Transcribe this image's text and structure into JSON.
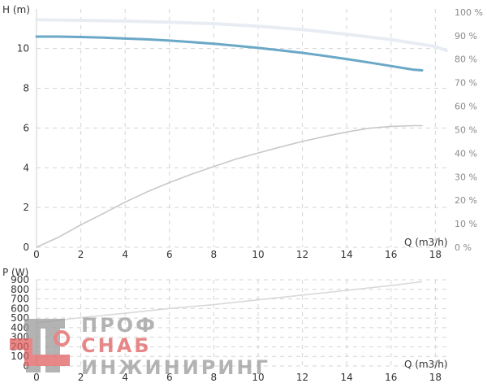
{
  "chart_data": [
    {
      "type": "line",
      "ylabel": "H (m)",
      "xlabel": "Q (m3/h)",
      "xlim": [
        0,
        18.5
      ],
      "ylim": [
        0,
        11.5
      ],
      "x_ticks": [
        "0",
        "2",
        "4",
        "6",
        "8",
        "10",
        "12",
        "14",
        "16",
        "18"
      ],
      "y_ticks": [
        "0",
        "2",
        "4",
        "6",
        "8",
        "10"
      ],
      "y2_ticks": [
        "0 %",
        "10 %",
        "20 %",
        "30 %",
        "40 %",
        "50 %",
        "60 %",
        "70 %",
        "80 %",
        "90 %",
        "100 %"
      ],
      "y2lim": [
        0,
        101
      ],
      "grid": true,
      "colors": {
        "head": "#6aa8c7",
        "efficiency": "#c8c8c8",
        "light_head": "#e8edf3",
        "grid": "#d4d4d4"
      },
      "series": [
        {
          "id": "head",
          "x": [
            0,
            1,
            2,
            3,
            4,
            5,
            6,
            7,
            8,
            9,
            10,
            11,
            12,
            13,
            14,
            15,
            16,
            17,
            17.4
          ],
          "values": [
            10.6,
            10.6,
            10.58,
            10.55,
            10.5,
            10.46,
            10.4,
            10.32,
            10.24,
            10.14,
            10.03,
            9.91,
            9.78,
            9.63,
            9.47,
            9.3,
            9.12,
            8.94,
            8.9
          ],
          "axis": "left"
        },
        {
          "id": "efficiency",
          "x": [
            0,
            1,
            2,
            3,
            4,
            5,
            6,
            7,
            8,
            9,
            10,
            11,
            12,
            13,
            14,
            15,
            16,
            17,
            17.4
          ],
          "values": [
            0,
            4.3,
            9.5,
            14.3,
            19.2,
            23.6,
            27.5,
            31.1,
            34.3,
            37.5,
            40.1,
            42.6,
            45,
            47.1,
            49,
            50.6,
            51.4,
            51.7,
            51.7
          ],
          "axis": "right"
        },
        {
          "id": "light-head",
          "x": [
            0,
            2,
            4,
            6,
            8,
            10,
            12,
            14,
            16,
            18,
            18.5
          ],
          "values": [
            11.45,
            11.42,
            11.38,
            11.32,
            11.25,
            11.12,
            10.95,
            10.72,
            10.45,
            10.1,
            9.9
          ],
          "axis": "left"
        }
      ]
    },
    {
      "type": "line",
      "ylabel": "P (W)",
      "xlabel": "Q (m3/h)",
      "xlim": [
        0,
        18.5
      ],
      "ylim": [
        0,
        900
      ],
      "x_ticks": [
        "0",
        "2",
        "4",
        "6",
        "8",
        "10",
        "12",
        "14",
        "16",
        "18"
      ],
      "y_ticks": [
        "0",
        "100",
        "200",
        "300",
        "400",
        "500",
        "600",
        "700",
        "800",
        "900"
      ],
      "grid": true,
      "colors": {
        "power": "#d9d9d9"
      },
      "series": [
        {
          "id": "power",
          "x": [
            0,
            2,
            4,
            6,
            8,
            10,
            12,
            14,
            16,
            17.4
          ],
          "values": [
            450,
            505,
            550,
            600,
            640,
            690,
            740,
            790,
            840,
            880
          ]
        }
      ]
    }
  ],
  "watermark": {
    "line1": "ПРОФ",
    "line2": "СНАБ",
    "line3": "ИНЖИНИРИНГ",
    "colors": {
      "gray": "#9a9a9a",
      "red": "#e06060"
    }
  }
}
